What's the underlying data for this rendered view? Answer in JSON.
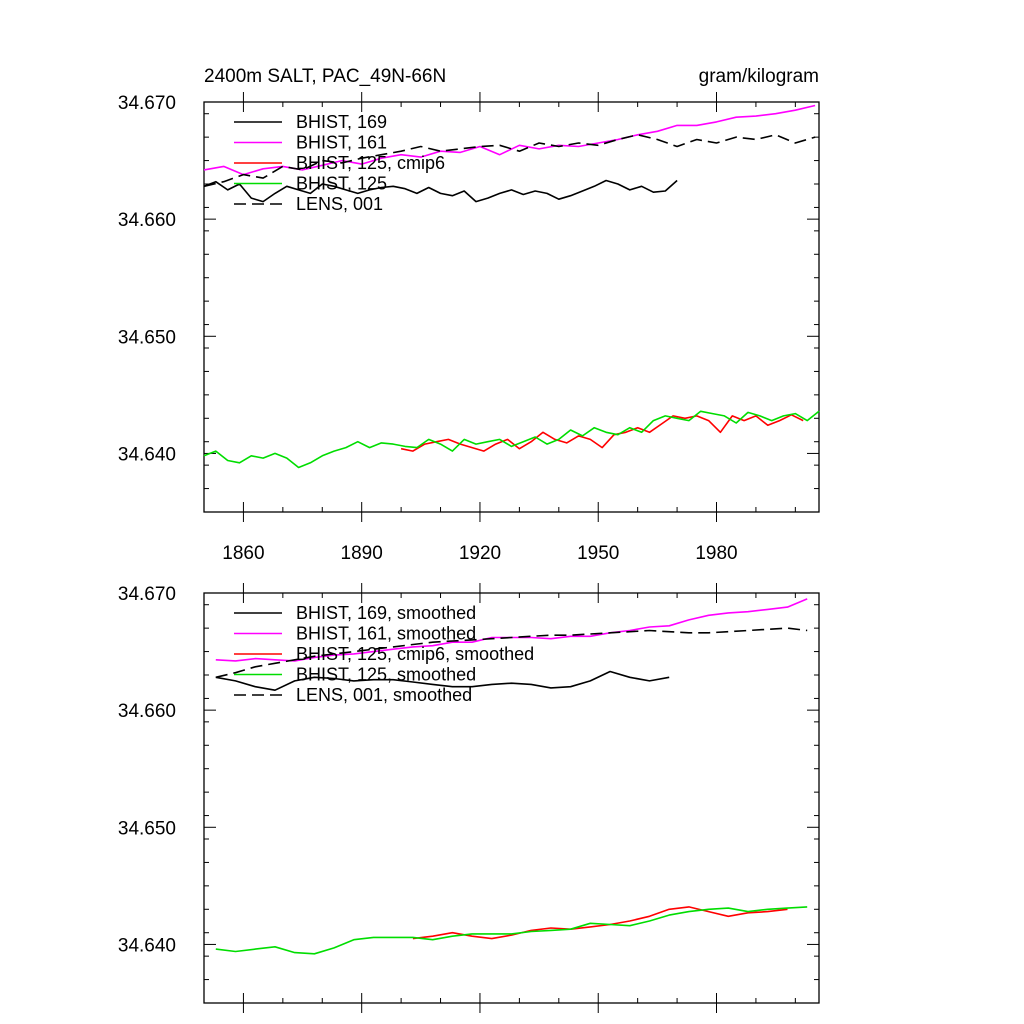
{
  "chart_data": [
    {
      "type": "line",
      "title": "2400m SALT, PAC_49N-66N",
      "units": "gram/kilogram",
      "xlim": [
        1850,
        2006
      ],
      "ylim": [
        34.635,
        34.67
      ],
      "x_ticks": [
        1860,
        1890,
        1920,
        1950,
        1980
      ],
      "y_ticks": [
        34.64,
        34.65,
        34.66,
        34.67
      ],
      "y_tick_labels": [
        "34.640",
        "34.650",
        "34.660",
        "34.670"
      ],
      "legend_position": "top-left",
      "series": [
        {
          "name": "BHIST, 169",
          "color": "#000000",
          "dash": "solid",
          "x": [
            1850,
            1853,
            1856,
            1859,
            1862,
            1865,
            1868,
            1871,
            1874,
            1877,
            1880,
            1883,
            1886,
            1889,
            1892,
            1895,
            1898,
            1901,
            1904,
            1907,
            1910,
            1913,
            1916,
            1919,
            1922,
            1925,
            1928,
            1931,
            1934,
            1937,
            1940,
            1943,
            1946,
            1949,
            1952,
            1955,
            1958,
            1961,
            1964,
            1967,
            1970
          ],
          "y": [
            34.6628,
            34.6632,
            34.6625,
            34.663,
            34.6618,
            34.6615,
            34.6622,
            34.6628,
            34.6625,
            34.6622,
            34.663,
            34.6628,
            34.6625,
            34.6622,
            34.6625,
            34.6627,
            34.6628,
            34.6626,
            34.6622,
            34.6627,
            34.6622,
            34.662,
            34.6624,
            34.6615,
            34.6618,
            34.6622,
            34.6625,
            34.6621,
            34.6624,
            34.6622,
            34.6617,
            34.662,
            34.6624,
            34.6628,
            34.6633,
            34.663,
            34.6625,
            34.6628,
            34.6623,
            34.6624,
            34.6633
          ]
        },
        {
          "name": "BHIST, 161",
          "color": "#ff00ff",
          "dash": "solid",
          "x": [
            1850,
            1855,
            1860,
            1865,
            1870,
            1875,
            1880,
            1885,
            1890,
            1895,
            1900,
            1905,
            1910,
            1915,
            1920,
            1925,
            1930,
            1935,
            1940,
            1945,
            1950,
            1955,
            1960,
            1965,
            1970,
            1975,
            1980,
            1985,
            1990,
            1995,
            2000,
            2005
          ],
          "y": [
            34.6642,
            34.6645,
            34.6638,
            34.6643,
            34.6645,
            34.6642,
            34.6646,
            34.665,
            34.6647,
            34.6652,
            34.6655,
            34.6653,
            34.6658,
            34.6657,
            34.6662,
            34.6655,
            34.6663,
            34.666,
            34.6663,
            34.6662,
            34.6665,
            34.6668,
            34.6672,
            34.6675,
            34.668,
            34.668,
            34.6683,
            34.6687,
            34.6688,
            34.669,
            34.6693,
            34.6697
          ]
        },
        {
          "name": "BHIST, 125, cmip6",
          "color": "#ff0000",
          "dash": "solid",
          "x": [
            1900,
            1903,
            1906,
            1909,
            1912,
            1915,
            1918,
            1921,
            1924,
            1927,
            1930,
            1933,
            1936,
            1939,
            1942,
            1945,
            1948,
            1951,
            1954,
            1957,
            1960,
            1963,
            1966,
            1969,
            1972,
            1975,
            1978,
            1981,
            1984,
            1987,
            1990,
            1993,
            1996,
            1999,
            2002
          ],
          "y": [
            34.6404,
            34.6402,
            34.6408,
            34.641,
            34.6412,
            34.6408,
            34.6405,
            34.6402,
            34.6408,
            34.6412,
            34.6404,
            34.641,
            34.6418,
            34.6412,
            34.6409,
            34.6415,
            34.6412,
            34.6405,
            34.6416,
            34.6418,
            34.6422,
            34.6418,
            34.6425,
            34.6432,
            34.643,
            34.6432,
            34.6428,
            34.6418,
            34.6432,
            34.6428,
            34.6432,
            34.6424,
            34.6428,
            34.6433,
            34.6428
          ]
        },
        {
          "name": "BHIST, 125",
          "color": "#00dd00",
          "dash": "solid",
          "x": [
            1850,
            1853,
            1856,
            1859,
            1862,
            1865,
            1868,
            1871,
            1874,
            1877,
            1880,
            1883,
            1886,
            1889,
            1892,
            1895,
            1898,
            1901,
            1904,
            1907,
            1910,
            1913,
            1916,
            1919,
            1922,
            1925,
            1928,
            1931,
            1934,
            1937,
            1940,
            1943,
            1946,
            1949,
            1952,
            1955,
            1958,
            1961,
            1964,
            1967,
            1970,
            1973,
            1976,
            1979,
            1982,
            1985,
            1988,
            1991,
            1994,
            1997,
            2000,
            2003,
            2006
          ],
          "y": [
            34.6398,
            34.6402,
            34.6394,
            34.6392,
            34.6398,
            34.6396,
            34.64,
            34.6396,
            34.6388,
            34.6392,
            34.6398,
            34.6402,
            34.6405,
            34.641,
            34.6405,
            34.6409,
            34.6408,
            34.6406,
            34.6405,
            34.6412,
            34.6408,
            34.6402,
            34.6412,
            34.6408,
            34.641,
            34.6412,
            34.6406,
            34.641,
            34.6414,
            34.6408,
            34.6412,
            34.642,
            34.6415,
            34.6422,
            34.6418,
            34.6416,
            34.6422,
            34.6418,
            34.6428,
            34.6432,
            34.643,
            34.6428,
            34.6436,
            34.6434,
            34.6432,
            34.6426,
            34.6435,
            34.6432,
            34.6428,
            34.6432,
            34.6434,
            34.6428,
            34.6436
          ]
        },
        {
          "name": "LENS, 001",
          "color": "#000000",
          "dash": "dashed",
          "x": [
            1850,
            1855,
            1860,
            1865,
            1870,
            1875,
            1880,
            1885,
            1890,
            1895,
            1900,
            1905,
            1910,
            1915,
            1920,
            1925,
            1930,
            1935,
            1940,
            1945,
            1950,
            1955,
            1960,
            1965,
            1970,
            1975,
            1980,
            1985,
            1990,
            1995,
            2000,
            2005
          ],
          "y": [
            34.6628,
            34.6632,
            34.6638,
            34.6635,
            34.6645,
            34.6642,
            34.665,
            34.6648,
            34.6652,
            34.6655,
            34.6658,
            34.6662,
            34.6658,
            34.666,
            34.6662,
            34.6663,
            34.6658,
            34.6665,
            34.6662,
            34.6665,
            34.6663,
            34.6668,
            34.6672,
            34.6668,
            34.6662,
            34.6668,
            34.6665,
            34.667,
            34.6668,
            34.6672,
            34.6665,
            34.667
          ]
        }
      ]
    },
    {
      "type": "line",
      "title": "",
      "xlim": [
        1850,
        2006
      ],
      "ylim": [
        34.635,
        34.67
      ],
      "x_ticks": [
        1860,
        1890,
        1920,
        1950,
        1980
      ],
      "y_ticks": [
        34.64,
        34.65,
        34.66,
        34.67
      ],
      "y_tick_labels": [
        "34.640",
        "34.650",
        "34.660",
        "34.670"
      ],
      "legend_position": "top-left",
      "series": [
        {
          "name": "BHIST, 169, smoothed",
          "color": "#000000",
          "dash": "solid",
          "x": [
            1853,
            1858,
            1863,
            1868,
            1873,
            1878,
            1883,
            1888,
            1893,
            1898,
            1903,
            1908,
            1913,
            1918,
            1923,
            1928,
            1933,
            1938,
            1943,
            1948,
            1953,
            1958,
            1963,
            1968
          ],
          "y": [
            34.6628,
            34.6625,
            34.662,
            34.6617,
            34.6625,
            34.6628,
            34.6627,
            34.6625,
            34.6626,
            34.6626,
            34.6624,
            34.6622,
            34.662,
            34.662,
            34.6622,
            34.6623,
            34.6622,
            34.6619,
            34.662,
            34.6625,
            34.6633,
            34.6628,
            34.6625,
            34.6628
          ]
        },
        {
          "name": "BHIST, 161, smoothed",
          "color": "#ff00ff",
          "dash": "solid",
          "x": [
            1853,
            1858,
            1863,
            1868,
            1873,
            1878,
            1883,
            1888,
            1893,
            1898,
            1903,
            1908,
            1913,
            1918,
            1923,
            1928,
            1933,
            1938,
            1943,
            1948,
            1953,
            1958,
            1963,
            1968,
            1973,
            1978,
            1983,
            1988,
            1993,
            1998,
            2003
          ],
          "y": [
            34.6643,
            34.6642,
            34.6644,
            34.6643,
            34.6642,
            34.6645,
            34.6647,
            34.6648,
            34.665,
            34.6652,
            34.6654,
            34.6655,
            34.6658,
            34.6658,
            34.6662,
            34.6662,
            34.6662,
            34.6661,
            34.6663,
            34.6663,
            34.6666,
            34.6668,
            34.6671,
            34.6672,
            34.6677,
            34.6681,
            34.6683,
            34.6684,
            34.6686,
            34.6688,
            34.6695
          ]
        },
        {
          "name": "BHIST, 125, cmip6, smoothed",
          "color": "#ff0000",
          "dash": "solid",
          "x": [
            1903,
            1908,
            1913,
            1918,
            1923,
            1928,
            1933,
            1938,
            1943,
            1948,
            1953,
            1958,
            1963,
            1968,
            1973,
            1978,
            1983,
            1988,
            1993,
            1998
          ],
          "y": [
            34.6405,
            34.6407,
            34.641,
            34.6407,
            34.6405,
            34.6408,
            34.6412,
            34.6414,
            34.6413,
            34.6415,
            34.6417,
            34.642,
            34.6424,
            34.643,
            34.6432,
            34.6428,
            34.6424,
            34.6427,
            34.6428,
            34.643
          ]
        },
        {
          "name": "BHIST, 125, smoothed",
          "color": "#00dd00",
          "dash": "solid",
          "x": [
            1853,
            1858,
            1863,
            1868,
            1873,
            1878,
            1883,
            1888,
            1893,
            1898,
            1903,
            1908,
            1913,
            1918,
            1923,
            1928,
            1933,
            1938,
            1943,
            1948,
            1953,
            1958,
            1963,
            1968,
            1973,
            1978,
            1983,
            1988,
            1993,
            1998,
            2003
          ],
          "y": [
            34.6396,
            34.6394,
            34.6396,
            34.6398,
            34.6393,
            34.6392,
            34.6397,
            34.6404,
            34.6406,
            34.6406,
            34.6406,
            34.6404,
            34.6407,
            34.6409,
            34.6409,
            34.6409,
            34.6411,
            34.6412,
            34.6413,
            34.6418,
            34.6417,
            34.6416,
            34.642,
            34.6425,
            34.6428,
            34.643,
            34.6431,
            34.6428,
            34.643,
            34.6431,
            34.6432
          ]
        },
        {
          "name": "LENS, 001, smoothed",
          "color": "#000000",
          "dash": "dashed",
          "x": [
            1853,
            1858,
            1863,
            1868,
            1873,
            1878,
            1883,
            1888,
            1893,
            1898,
            1903,
            1908,
            1913,
            1918,
            1923,
            1928,
            1933,
            1938,
            1943,
            1948,
            1953,
            1958,
            1963,
            1968,
            1973,
            1978,
            1983,
            1988,
            1993,
            1998,
            2003
          ],
          "y": [
            34.6628,
            34.6632,
            34.6637,
            34.664,
            34.6643,
            34.6646,
            34.6648,
            34.665,
            34.6652,
            34.6654,
            34.6656,
            34.6658,
            34.6659,
            34.666,
            34.6661,
            34.6662,
            34.6663,
            34.6664,
            34.6664,
            34.6665,
            34.6666,
            34.6667,
            34.6668,
            34.6667,
            34.6666,
            34.6666,
            34.6667,
            34.6668,
            34.6669,
            34.667,
            34.6668
          ]
        }
      ]
    }
  ]
}
